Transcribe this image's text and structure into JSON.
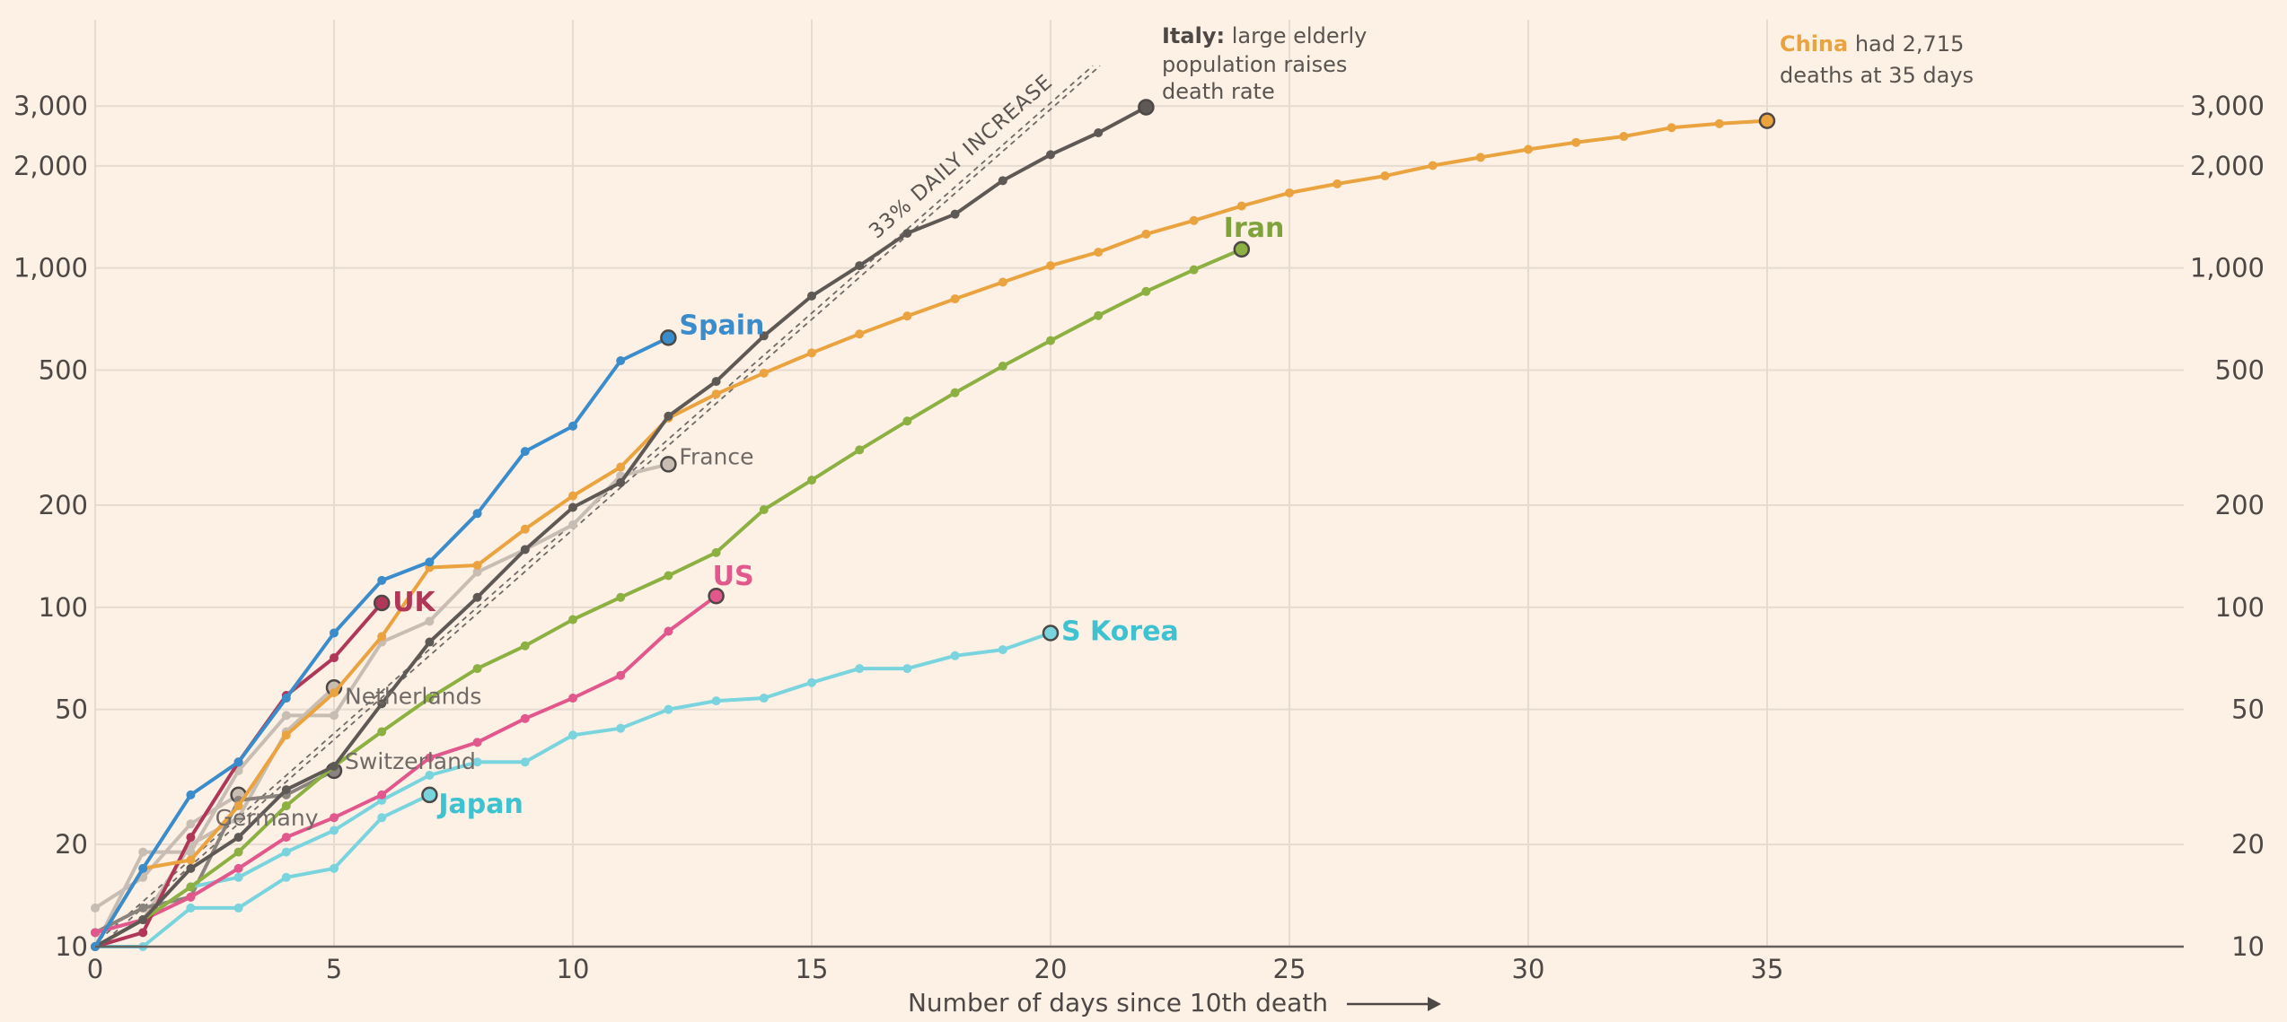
{
  "chart_data": {
    "type": "line",
    "xlabel": "Number of days since 10th death",
    "x_ticks": [
      0,
      5,
      10,
      15,
      20,
      25,
      30,
      35
    ],
    "xlim": [
      0,
      45
    ],
    "y_scale": "log",
    "ylim": [
      10,
      4000
    ],
    "y_ticks": [
      10,
      20,
      50,
      100,
      200,
      500,
      1000,
      2000,
      3000
    ],
    "y_tick_labels": [
      "10",
      "20",
      "50",
      "100",
      "200",
      "500",
      "1,000",
      "2,000",
      "3,000"
    ],
    "grid": true,
    "reference_line": {
      "label": "33% DAILY INCREASE",
      "rate": 0.33,
      "start": 10
    },
    "series": [
      {
        "name": "Italy",
        "color": "#5f5955",
        "labeled": false,
        "values": [
          10,
          12,
          17,
          21,
          29,
          34,
          52,
          79,
          107,
          148,
          197,
          233,
          366,
          463,
          631,
          827,
          1016,
          1266,
          1441,
          1809,
          2158,
          2503,
          2978
        ]
      },
      {
        "name": "China",
        "color": "#eba33f",
        "labeled": false,
        "values": [
          10,
          17,
          18,
          26,
          42,
          56,
          82,
          131,
          133,
          170,
          213,
          259,
          361,
          425,
          490,
          562,
          639,
          722,
          811,
          908,
          1016,
          1113,
          1259,
          1380,
          1523,
          1665,
          1770,
          1868,
          2004,
          2118,
          2236,
          2345,
          2442,
          2592,
          2663,
          2715
        ]
      },
      {
        "name": "Iran",
        "color": "#8db043",
        "labeled": true,
        "values": [
          10,
          12,
          15,
          19,
          26,
          34,
          43,
          54,
          66,
          77,
          92,
          107,
          124,
          145,
          194,
          237,
          291,
          354,
          429,
          514,
          611,
          724,
          853,
          988,
          1135
        ]
      },
      {
        "name": "Spain",
        "color": "#3b8ccb",
        "labeled": true,
        "values": [
          10,
          17,
          28,
          35,
          54,
          84,
          120,
          136,
          189,
          288,
          342,
          533,
          623
        ]
      },
      {
        "name": "France",
        "color": "#c8bdb3",
        "labeled": true,
        "values": [
          10,
          19,
          19,
          33,
          48,
          48,
          79,
          91,
          127,
          148,
          175,
          244,
          264
        ]
      },
      {
        "name": "UK",
        "color": "#b13758",
        "labeled": true,
        "values": [
          10,
          11,
          21,
          35,
          55,
          71,
          103
        ]
      },
      {
        "name": "US",
        "color": "#e2588c",
        "labeled": true,
        "values": [
          11,
          12,
          14,
          17,
          21,
          24,
          28,
          36,
          40,
          47,
          54,
          63,
          85,
          108
        ]
      },
      {
        "name": "Netherlands",
        "color": "#c8bdb3",
        "labeled": true,
        "values": [
          10,
          12,
          20,
          24,
          43,
          58
        ]
      },
      {
        "name": "Switzerland",
        "color": "#8a837e",
        "labeled": true,
        "values": [
          11,
          13,
          14,
          27,
          28,
          33
        ]
      },
      {
        "name": "Germany",
        "color": "#c8bdb3",
        "labeled": true,
        "values": [
          13,
          16,
          23,
          28
        ]
      },
      {
        "name": "Japan",
        "color": "#79d4de",
        "labeled": true,
        "values": [
          10,
          10,
          13,
          13,
          16,
          17,
          24,
          28
        ]
      },
      {
        "name": "S Korea",
        "color": "#79d4de",
        "labeled": true,
        "values": [
          11,
          12,
          15,
          16,
          19,
          22,
          27,
          32,
          35,
          35,
          42,
          44,
          50,
          53,
          54,
          60,
          66,
          66,
          72,
          75,
          84
        ]
      }
    ],
    "annotations": {
      "italy": {
        "bold": "Italy:",
        "lines": [
          " large elderly",
          "population raises",
          "death rate"
        ],
        "color": "#5f5955"
      },
      "china": {
        "bold": "China",
        "lines": [
          " had 2,715",
          "deaths at 35 days"
        ],
        "color": "#eba33f"
      }
    }
  }
}
